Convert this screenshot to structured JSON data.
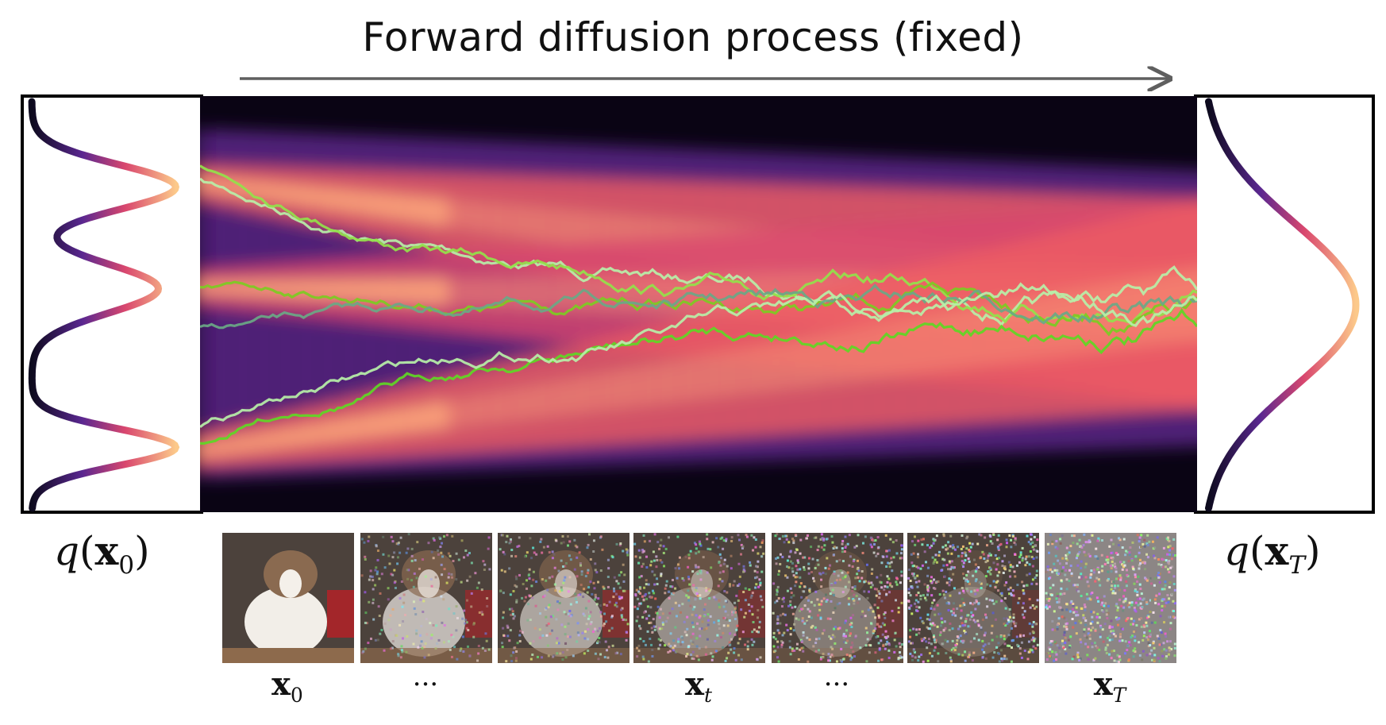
{
  "title": "Forward diffusion process (fixed)",
  "left_dist": {
    "fn": "q",
    "var": "x",
    "sub": "0"
  },
  "right_dist": {
    "fn": "q",
    "var": "x",
    "sub": "T"
  },
  "thumbnails": [
    {
      "label_var": "x",
      "label_sub": "0",
      "noise": 0.0
    },
    {
      "label_var": "",
      "label_sub": "",
      "dots": "···",
      "noise": 0.35
    },
    {
      "label_var": "",
      "label_sub": "",
      "noise": 0.5
    },
    {
      "label_var": "x",
      "label_sub": "t",
      "noise": 0.65
    },
    {
      "label_var": "",
      "label_sub": "",
      "dots": "···",
      "noise": 0.78
    },
    {
      "label_var": "",
      "label_sub": "",
      "noise": 0.9
    },
    {
      "label_var": "x",
      "label_sub": "T",
      "noise": 1.0
    }
  ],
  "colors": {
    "arrow": "#5f5f5f",
    "heat_dark": "#0a0414",
    "heat_mid": "#6a2a8a",
    "heat_hot": "#f2655a",
    "heat_peak": "#fcb27a",
    "path_greens": [
      "#b7f0a8",
      "#93e24a",
      "#7ccc22",
      "#6aa886",
      "#5ed824"
    ]
  }
}
